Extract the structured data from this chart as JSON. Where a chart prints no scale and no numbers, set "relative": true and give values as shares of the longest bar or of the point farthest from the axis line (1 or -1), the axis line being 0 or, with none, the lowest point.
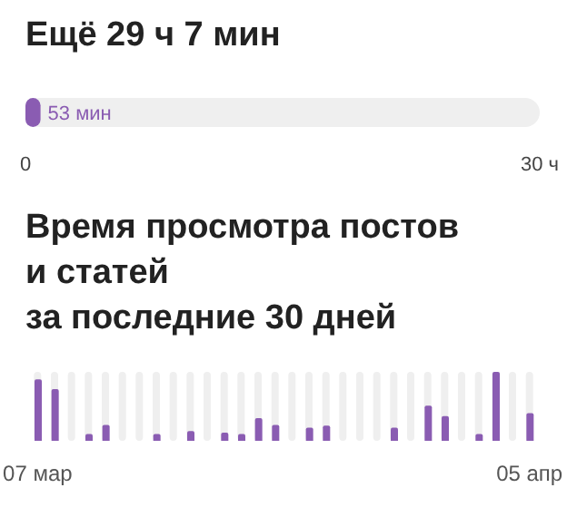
{
  "chart_data": [
    {
      "type": "bar",
      "orientation": "horizontal",
      "title": "Ещё 29 ч 7 мин",
      "categories": [
        null
      ],
      "color": "#8a5cb2",
      "values": [
        0.88
      ],
      "annotations": [
        "53 мин"
      ],
      "xlim": [
        0,
        30
      ],
      "xticks": [
        0,
        {
          "value": 30,
          "label": "30 ч"
        }
      ]
    },
    {
      "type": "bar",
      "relative": true,
      "title": "Время просмотра постов\nи статей\nза последние 30 дней",
      "categories": [
        "07 мар",
        null,
        null,
        null,
        null,
        null,
        null,
        null,
        null,
        null,
        null,
        null,
        null,
        null,
        null,
        null,
        null,
        null,
        null,
        null,
        null,
        null,
        null,
        null,
        null,
        null,
        null,
        null,
        null,
        "05 апр"
      ],
      "color": "#8a5cb2",
      "grid": "x",
      "values": [
        0.89,
        0.75,
        0,
        0.1,
        0.23,
        0,
        0,
        0.1,
        0,
        0.14,
        0,
        0.12,
        0.1,
        0.33,
        0.23,
        0,
        0.19,
        0.22,
        0,
        0,
        0,
        0.19,
        0,
        0.51,
        0.36,
        0,
        0.1,
        1,
        0,
        0.4
      ]
    }
  ]
}
